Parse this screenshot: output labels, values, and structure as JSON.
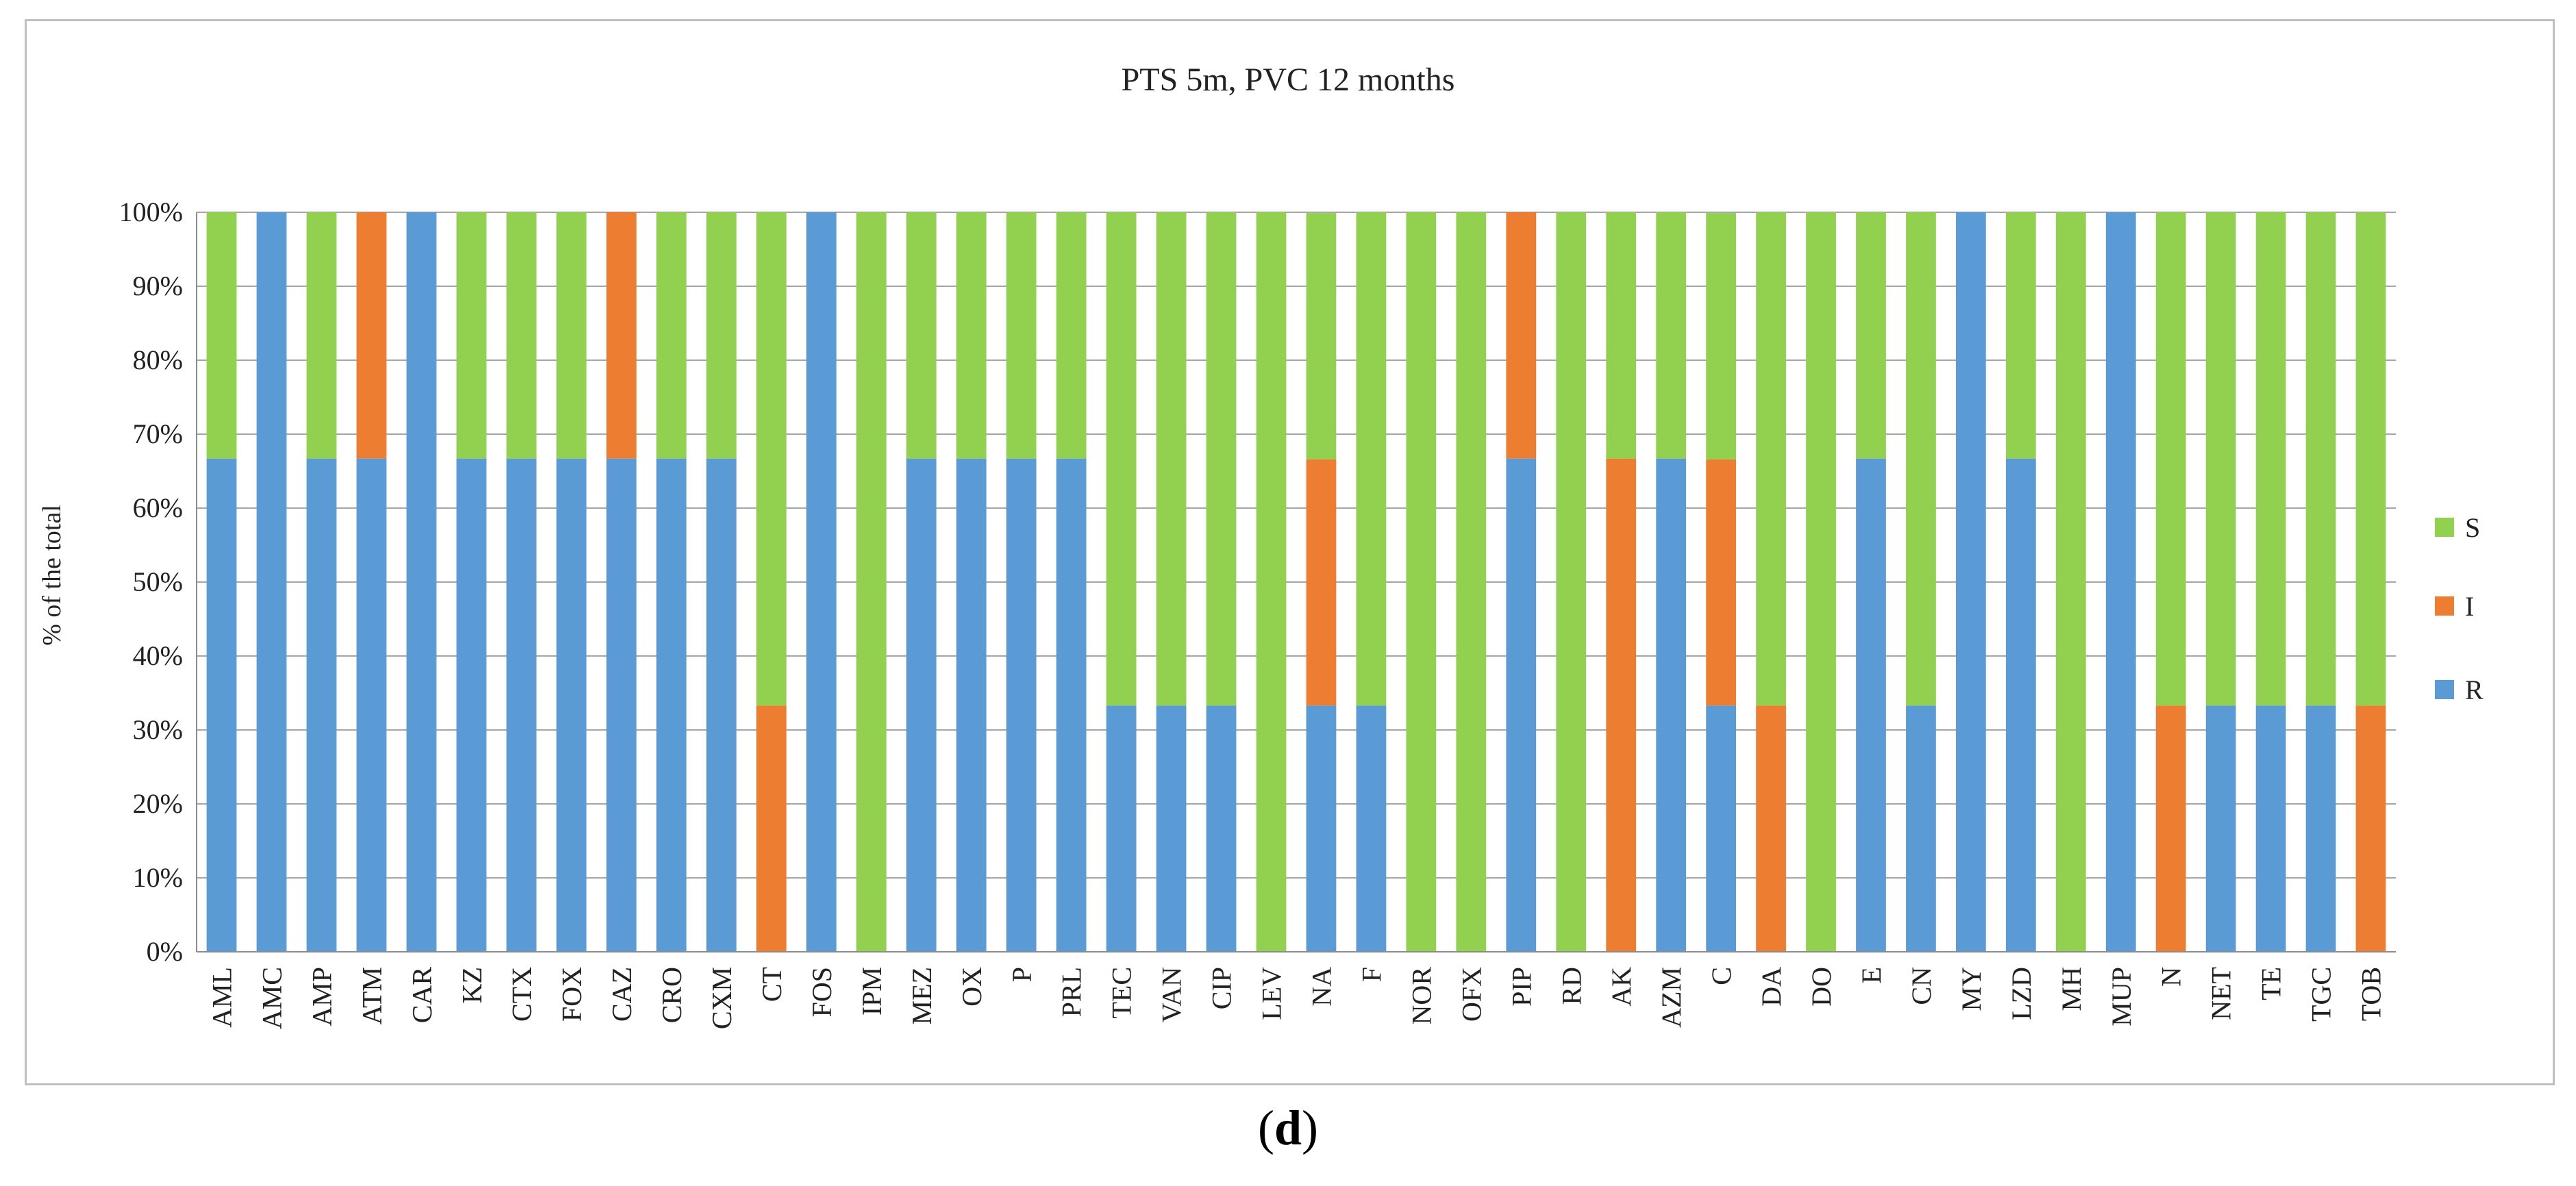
{
  "panel_label": {
    "open": "(",
    "letter": "d",
    "close": ")"
  },
  "chart_data": {
    "type": "bar",
    "stacked": "percent",
    "title": "PTS 5m, PVC 12 months",
    "xlabel": "",
    "ylabel": "% of the total",
    "ylim": [
      0,
      100
    ],
    "yticks": [
      "0%",
      "10%",
      "20%",
      "30%",
      "40%",
      "50%",
      "60%",
      "70%",
      "80%",
      "90%",
      "100%"
    ],
    "grid": true,
    "legend_position": "right",
    "categories": [
      "AML",
      "AMC",
      "AMP",
      "ATM",
      "CAR",
      "KZ",
      "CTX",
      "FOX",
      "CAZ",
      "CRO",
      "CXM",
      "CT",
      "FOS",
      "IPM",
      "MEZ",
      "OX",
      "P",
      "PRL",
      "TEC",
      "VAN",
      "CIP",
      "LEV",
      "NA",
      "F",
      "NOR",
      "OFX",
      "PIP",
      "RD",
      "AK",
      "AZM",
      "C",
      "DA",
      "DO",
      "E",
      "CN",
      "MY",
      "LZD",
      "MH",
      "MUP",
      "N",
      "NET",
      "TE",
      "TGC",
      "TOB"
    ],
    "series": [
      {
        "name": "R",
        "color": "#5b9bd5",
        "values": [
          66.7,
          100,
          66.7,
          66.7,
          100,
          66.7,
          66.7,
          66.7,
          66.7,
          66.7,
          66.7,
          0,
          100,
          0,
          66.7,
          66.7,
          66.7,
          66.7,
          33.3,
          33.3,
          33.3,
          0,
          33.3,
          33.3,
          0,
          0,
          66.7,
          0,
          0,
          66.7,
          33.3,
          0,
          0,
          66.7,
          33.3,
          100,
          66.7,
          0,
          100,
          0,
          33.3,
          33.3,
          33.3,
          0
        ]
      },
      {
        "name": "I",
        "color": "#ed7d31",
        "values": [
          0,
          0,
          0,
          33.3,
          0,
          0,
          0,
          0,
          33.3,
          0,
          0,
          33.3,
          0,
          0,
          0,
          0,
          0,
          0,
          0,
          0,
          0,
          0,
          33.3,
          0,
          0,
          0,
          33.3,
          0,
          66.7,
          0,
          33.3,
          33.3,
          0,
          0,
          0,
          0,
          0,
          0,
          0,
          33.3,
          0,
          0,
          0,
          33.3
        ]
      },
      {
        "name": "S",
        "color": "#92d050",
        "values": [
          33.3,
          0,
          33.3,
          0,
          0,
          33.3,
          33.3,
          33.3,
          0,
          33.3,
          33.3,
          66.7,
          0,
          100,
          33.3,
          33.3,
          33.3,
          33.3,
          66.7,
          66.7,
          66.7,
          100,
          33.3,
          66.7,
          100,
          100,
          0,
          100,
          33.3,
          33.3,
          33.3,
          66.7,
          100,
          33.3,
          66.7,
          0,
          33.3,
          100,
          0,
          66.7,
          66.7,
          66.7,
          66.7,
          66.7
        ]
      }
    ],
    "legend_order": [
      "S",
      "I",
      "R"
    ]
  }
}
